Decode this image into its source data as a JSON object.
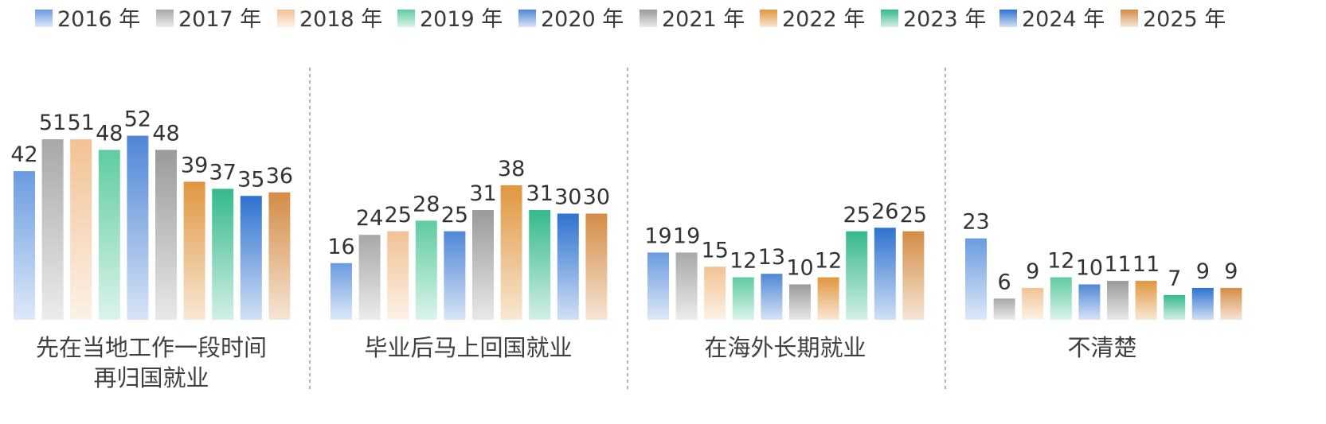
{
  "chart_data": {
    "type": "bar",
    "title": "",
    "xlabel": "",
    "ylabel": "",
    "ylim": [
      0,
      60
    ],
    "series": [
      {
        "name": "2016 年",
        "color": "#6a9be0",
        "values": [
          42,
          16,
          19,
          23
        ]
      },
      {
        "name": "2017 年",
        "color": "#a8a8a8",
        "values": [
          51,
          24,
          19,
          6
        ]
      },
      {
        "name": "2018 年",
        "color": "#f2c294",
        "values": [
          51,
          25,
          15,
          9
        ]
      },
      {
        "name": "2019 年",
        "color": "#5fcca0",
        "values": [
          48,
          28,
          12,
          12
        ]
      },
      {
        "name": "2020 年",
        "color": "#4f86d6",
        "values": [
          52,
          25,
          13,
          10
        ]
      },
      {
        "name": "2021 年",
        "color": "#9a9a9a",
        "values": [
          48,
          31,
          10,
          11
        ]
      },
      {
        "name": "2022 年",
        "color": "#e0963f",
        "values": [
          39,
          38,
          12,
          11
        ]
      },
      {
        "name": "2023 年",
        "color": "#35b98a",
        "values": [
          37,
          31,
          25,
          7
        ]
      },
      {
        "name": "2024 年",
        "color": "#2f72cf",
        "values": [
          35,
          30,
          26,
          9
        ]
      },
      {
        "name": "2025 年",
        "color": "#d48c45",
        "values": [
          36,
          30,
          25,
          9
        ]
      }
    ],
    "categories": [
      {
        "lines": [
          "先在当地工作一段时间",
          "再归国就业"
        ]
      },
      {
        "lines": [
          "毕业后马上回国就业"
        ]
      },
      {
        "lines": [
          "在海外长期就业"
        ]
      },
      {
        "lines": [
          "不清楚"
        ]
      }
    ],
    "legend_position": "top",
    "grid": false
  }
}
